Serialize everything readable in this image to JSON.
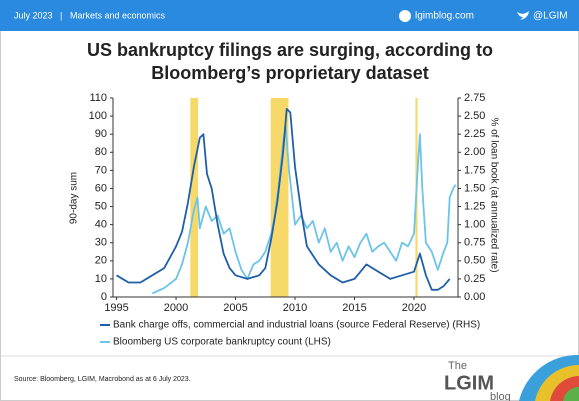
{
  "header": {
    "date": "July 2023",
    "separator": "|",
    "section": "Markets and economics",
    "site": "lgimblog.com",
    "handle": "@LGIM"
  },
  "footer": {
    "source": "Source: Bloomberg, LGIM, Macrobond as at 6 July 2023."
  },
  "logo": {
    "the": "The",
    "name": "LGIM",
    "blog": "blog"
  },
  "chart_data": {
    "type": "line",
    "title": [
      "US bankruptcy filings are surging, according to",
      "Bloomberg’s proprietary dataset"
    ],
    "y_label": "90-day sum",
    "y2_label": "% of loan book (at annualized rate)",
    "xlim": [
      1994.7,
      2023.7
    ],
    "xticks": [
      1995,
      2000,
      2005,
      2010,
      2015,
      2020
    ],
    "ylim": [
      0,
      110
    ],
    "yticks": [
      0,
      10,
      20,
      30,
      40,
      50,
      60,
      70,
      80,
      90,
      100,
      110
    ],
    "y2lim": [
      0,
      2.75
    ],
    "y2ticks": [
      {
        "value": 0,
        "label": "0.00"
      },
      0.25,
      {
        "value": 0.5,
        "label": "0.50"
      },
      0.75,
      {
        "value": 1,
        "label": "1.00"
      },
      1.25,
      {
        "value": 1.5,
        "label": "1.50"
      },
      1.75,
      {
        "value": 2,
        "label": "2.00"
      },
      2.25,
      {
        "value": 2.5,
        "label": "2.50"
      },
      2.75
    ],
    "shaded_periods": [
      [
        2001.2,
        2001.85
      ],
      [
        2007.95,
        2009.45
      ],
      [
        2020.12,
        2020.3
      ]
    ],
    "shade_color": "#f7d96a",
    "series": [
      {
        "name": "Bank charge offs, commercial and industrial loans (source Federal Reserve) (RHS)",
        "color": "#1f5fa8",
        "axis": "y2",
        "x": [
          1995,
          1996,
          1997,
          1998,
          1999,
          2000,
          2000.5,
          2001,
          2001.5,
          2002,
          2002.3,
          2002.6,
          2003,
          2003.5,
          2004,
          2004.5,
          2005,
          2006,
          2007,
          2007.5,
          2008,
          2008.5,
          2009,
          2009.3,
          2009.6,
          2010,
          2010.5,
          2011,
          2012,
          2013,
          2014,
          2015,
          2016,
          2017,
          2018,
          2019,
          2020,
          2020.5,
          2021,
          2021.5,
          2022,
          2022.5,
          2023
        ],
        "values": [
          0.3,
          0.2,
          0.2,
          0.3,
          0.4,
          0.7,
          0.9,
          1.3,
          1.8,
          2.2,
          2.25,
          1.7,
          1.5,
          1.0,
          0.6,
          0.4,
          0.3,
          0.25,
          0.3,
          0.4,
          0.8,
          1.3,
          2.0,
          2.6,
          2.55,
          1.8,
          1.2,
          0.7,
          0.45,
          0.3,
          0.2,
          0.25,
          0.45,
          0.35,
          0.25,
          0.3,
          0.35,
          0.6,
          0.3,
          0.1,
          0.1,
          0.15,
          0.25
        ]
      },
      {
        "name": "Bloomberg US corporate bankruptcy count (LHS)",
        "color": "#6cc4e8",
        "axis": "y",
        "x": [
          1998,
          1999,
          2000,
          2000.5,
          2001,
          2001.5,
          2001.8,
          2002,
          2002.5,
          2003,
          2003.5,
          2004,
          2004.5,
          2005,
          2005.5,
          2006,
          2006.5,
          2007,
          2007.5,
          2008,
          2008.3,
          2008.6,
          2009,
          2009.2,
          2009.5,
          2010,
          2010.5,
          2011,
          2011.5,
          2012,
          2012.5,
          2013,
          2013.5,
          2014,
          2014.5,
          2015,
          2015.5,
          2016,
          2016.5,
          2017,
          2017.5,
          2018,
          2018.5,
          2019,
          2019.5,
          2020,
          2020.3,
          2020.5,
          2020.7,
          2021,
          2021.5,
          2022,
          2022.5,
          2022.8,
          2023,
          2023.3,
          2023.5
        ],
        "values": [
          2,
          5,
          10,
          18,
          30,
          48,
          55,
          38,
          50,
          42,
          45,
          35,
          38,
          25,
          15,
          10,
          18,
          20,
          25,
          35,
          45,
          60,
          85,
          95,
          70,
          40,
          45,
          38,
          42,
          30,
          38,
          25,
          30,
          20,
          28,
          22,
          30,
          35,
          25,
          28,
          30,
          25,
          20,
          30,
          28,
          35,
          70,
          90,
          60,
          30,
          25,
          15,
          25,
          30,
          55,
          60,
          62
        ]
      }
    ]
  }
}
